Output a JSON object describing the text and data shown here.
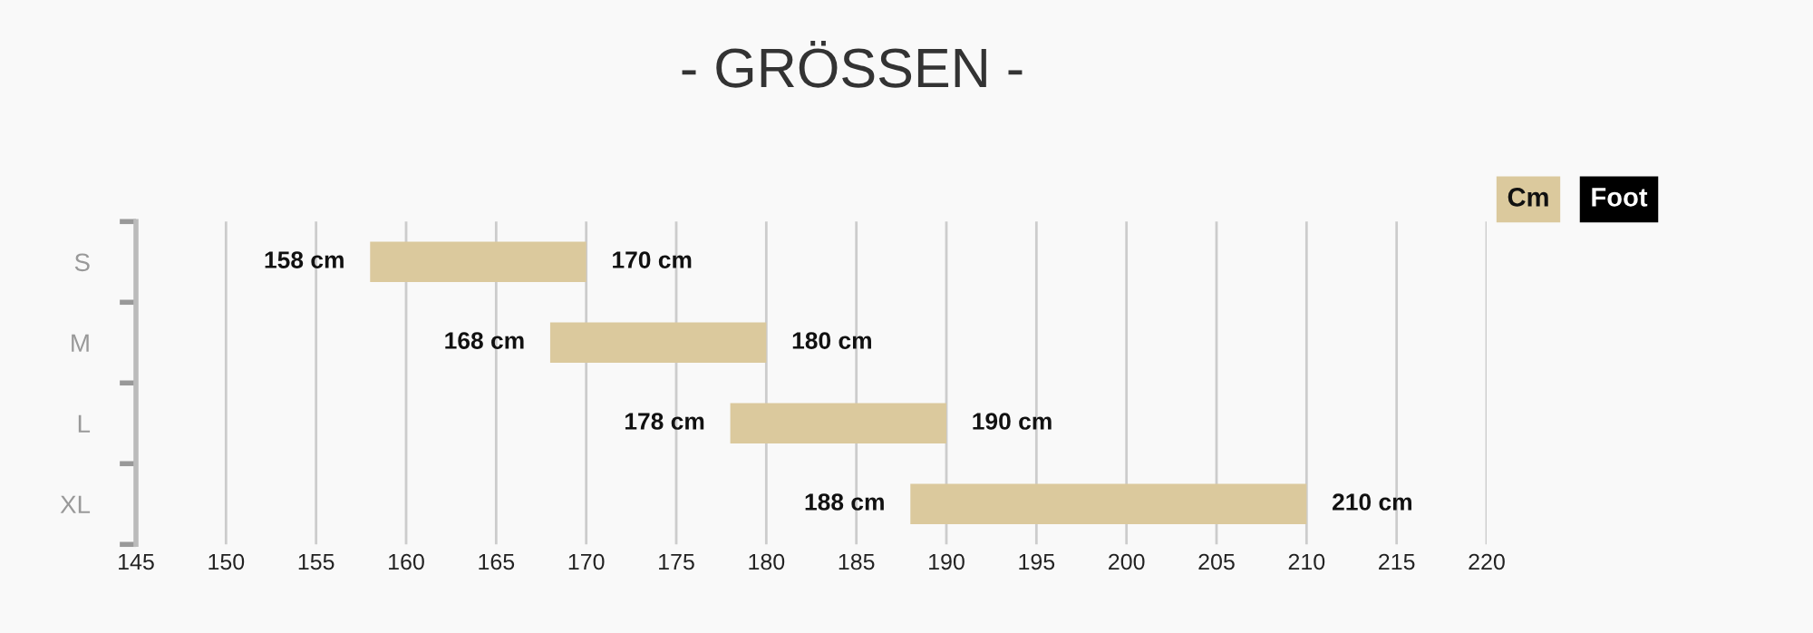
{
  "chart_data": {
    "type": "bar",
    "orientation": "horizontal",
    "title": "- GRÖSSEN -",
    "categories": [
      "S",
      "M",
      "L",
      "XL"
    ],
    "base": [
      158,
      168,
      178,
      188
    ],
    "values": [
      12,
      12,
      12,
      22
    ],
    "color": "#dbc99d",
    "xlim": [
      145,
      220
    ],
    "xticks": [
      145,
      150,
      155,
      160,
      165,
      170,
      175,
      180,
      185,
      190,
      195,
      200,
      205,
      210,
      215,
      220
    ],
    "grid": "x",
    "annotations": [
      "Cm",
      "Foot",
      {
        "text": "158 cm",
        "x": 158,
        "y": "S"
      },
      {
        "text": "170 cm",
        "x": 170,
        "y": "S"
      },
      {
        "text": "168 cm",
        "x": 168,
        "y": "M"
      },
      {
        "text": "180 cm",
        "x": 180,
        "y": "M"
      },
      {
        "text": "178 cm",
        "x": 178,
        "y": "L"
      },
      {
        "text": "190 cm",
        "x": 190,
        "y": "L"
      },
      {
        "text": "188 cm",
        "x": 188,
        "y": "XL"
      },
      {
        "text": "210 cm",
        "x": 210,
        "y": "XL"
      }
    ]
  }
}
